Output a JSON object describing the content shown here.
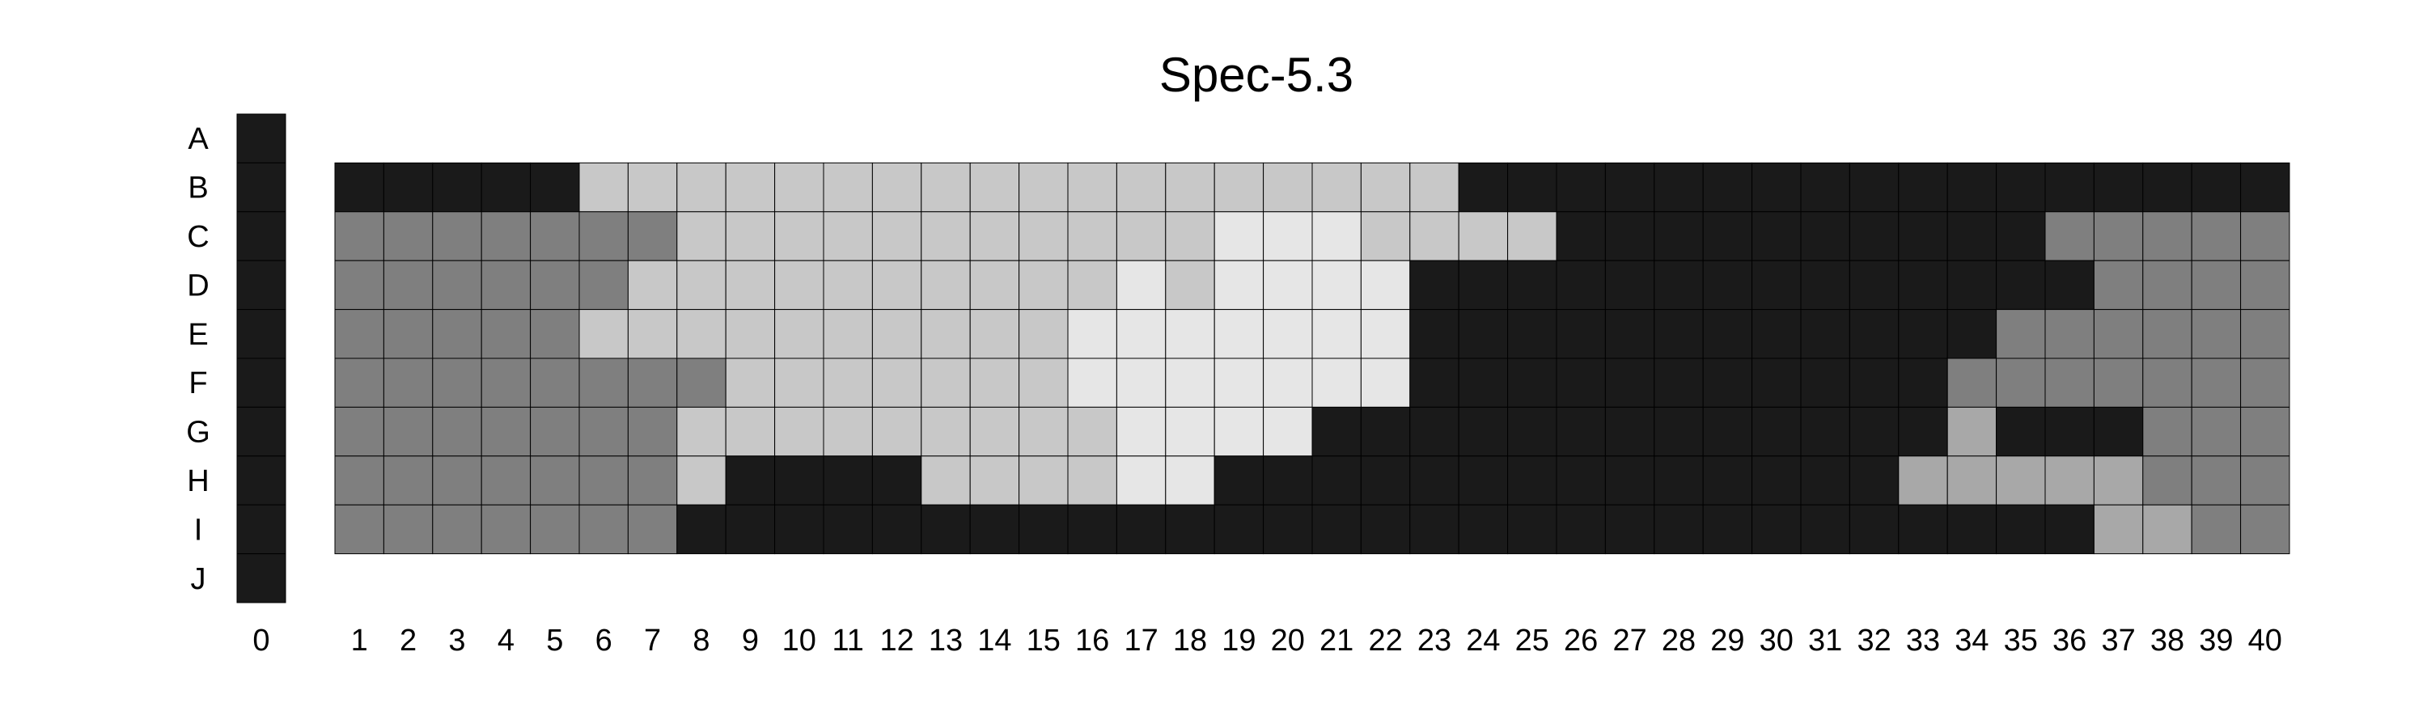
{
  "chart_data": {
    "type": "heatmap",
    "title": "Spec-5.3",
    "xlabel": "",
    "ylabel": "",
    "x_tick_labels": [
      "0",
      "1",
      "2",
      "3",
      "4",
      "5",
      "6",
      "7",
      "8",
      "9",
      "10",
      "11",
      "12",
      "13",
      "14",
      "15",
      "16",
      "17",
      "18",
      "19",
      "20",
      "21",
      "22",
      "23",
      "24",
      "25",
      "26",
      "27",
      "28",
      "29",
      "30",
      "31",
      "32",
      "33",
      "34",
      "35",
      "36",
      "37",
      "38",
      "39",
      "40"
    ],
    "y_tick_labels": [
      "A",
      "B",
      "C",
      "D",
      "E",
      "F",
      "G",
      "H",
      "I",
      "J"
    ],
    "value_scale": "0 = darkest shade, 4 = lightest shade",
    "colors": [
      "#1a1a1a",
      "#7f7f7f",
      "#a8a8a8",
      "#c8c8c8",
      "#e6e6e6"
    ],
    "column_0": [
      0,
      0,
      0,
      0,
      0,
      0,
      0,
      0,
      0,
      0
    ],
    "columns_1_to_40": {
      "B": [
        0,
        0,
        0,
        0,
        0,
        3,
        3,
        3,
        3,
        3,
        3,
        3,
        3,
        3,
        3,
        3,
        3,
        3,
        3,
        3,
        3,
        3,
        3,
        0,
        0,
        0,
        0,
        0,
        0,
        0,
        0,
        0,
        0,
        0,
        0,
        0,
        0,
        0,
        0,
        0
      ],
      "C": [
        1,
        1,
        1,
        1,
        1,
        1,
        1,
        3,
        3,
        3,
        3,
        3,
        3,
        3,
        3,
        3,
        3,
        3,
        4,
        4,
        4,
        3,
        3,
        3,
        3,
        0,
        0,
        0,
        0,
        0,
        0,
        0,
        0,
        0,
        0,
        1,
        1,
        1,
        1,
        1
      ],
      "D": [
        1,
        1,
        1,
        1,
        1,
        1,
        3,
        3,
        3,
        3,
        3,
        3,
        3,
        3,
        3,
        3,
        4,
        3,
        4,
        4,
        4,
        4,
        0,
        0,
        0,
        0,
        0,
        0,
        0,
        0,
        0,
        0,
        0,
        0,
        0,
        0,
        1,
        1,
        1,
        1
      ],
      "E": [
        1,
        1,
        1,
        1,
        1,
        3,
        3,
        3,
        3,
        3,
        3,
        3,
        3,
        3,
        3,
        4,
        4,
        4,
        4,
        4,
        4,
        4,
        0,
        0,
        0,
        0,
        0,
        0,
        0,
        0,
        0,
        0,
        0,
        0,
        1,
        1,
        1,
        1,
        1,
        1
      ],
      "F": [
        1,
        1,
        1,
        1,
        1,
        1,
        1,
        1,
        3,
        3,
        3,
        3,
        3,
        3,
        3,
        4,
        4,
        4,
        4,
        4,
        4,
        4,
        0,
        0,
        0,
        0,
        0,
        0,
        0,
        0,
        0,
        0,
        0,
        1,
        1,
        1,
        1,
        1,
        1,
        1
      ],
      "G": [
        1,
        1,
        1,
        1,
        1,
        1,
        1,
        3,
        3,
        3,
        3,
        3,
        3,
        3,
        3,
        3,
        4,
        4,
        4,
        4,
        0,
        0,
        0,
        0,
        0,
        0,
        0,
        0,
        0,
        0,
        0,
        0,
        0,
        2,
        0,
        0,
        0,
        1,
        1,
        1
      ],
      "H": [
        1,
        1,
        1,
        1,
        1,
        1,
        1,
        3,
        0,
        0,
        0,
        0,
        3,
        3,
        3,
        3,
        4,
        4,
        0,
        0,
        0,
        0,
        0,
        0,
        0,
        0,
        0,
        0,
        0,
        0,
        0,
        0,
        2,
        2,
        2,
        2,
        2,
        1,
        1,
        1
      ],
      "I": [
        1,
        1,
        1,
        1,
        1,
        1,
        1,
        0,
        0,
        0,
        0,
        0,
        0,
        0,
        0,
        0,
        0,
        0,
        0,
        0,
        0,
        0,
        0,
        0,
        0,
        0,
        0,
        0,
        0,
        0,
        0,
        0,
        0,
        0,
        0,
        0,
        2,
        2,
        1,
        1
      ]
    },
    "grid": true,
    "legend": "none"
  }
}
